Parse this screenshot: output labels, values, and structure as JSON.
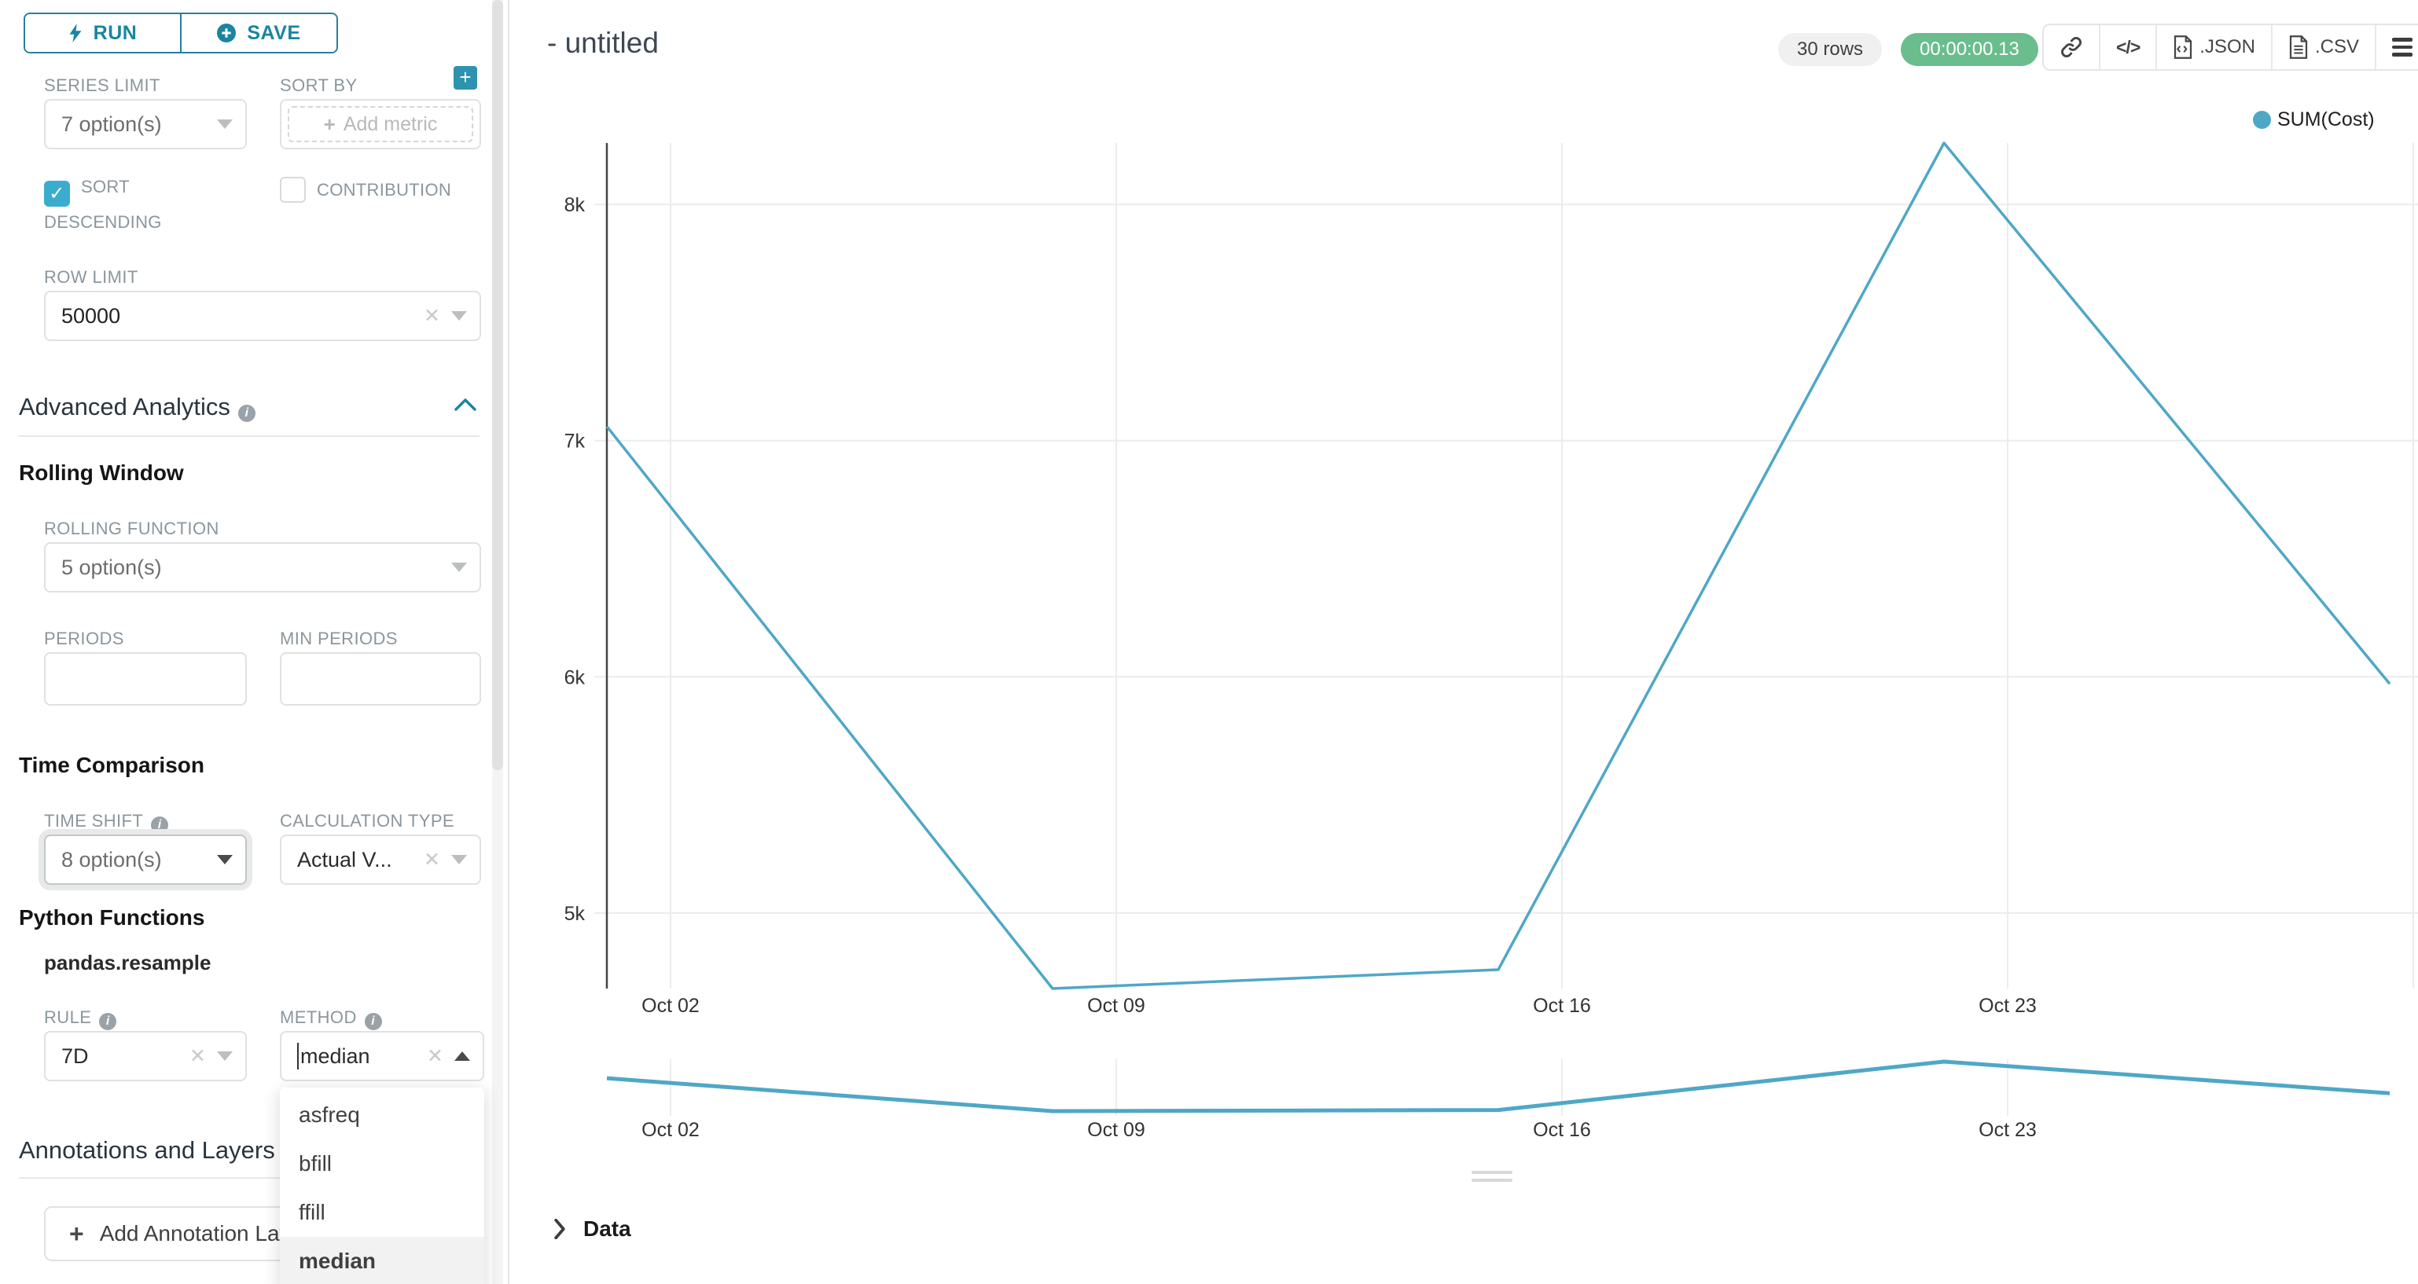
{
  "icons": {
    "check": "✓",
    "clear": "✕",
    "plus": "+",
    "code": "</>",
    "info": "i"
  },
  "sidebar": {
    "run_label": "RUN",
    "save_label": "SAVE",
    "series_limit": {
      "label": "SERIES LIMIT",
      "value": "7 option(s)"
    },
    "sort_by": {
      "label": "SORT BY",
      "placeholder": "Add metric"
    },
    "sort_descending": {
      "label": "SORT DESCENDING",
      "checked": true
    },
    "contribution": {
      "label": "CONTRIBUTION",
      "checked": false
    },
    "row_limit": {
      "label": "ROW LIMIT",
      "value": "50000"
    },
    "advanced_analytics": {
      "title": "Advanced Analytics"
    },
    "rolling_window": {
      "title": "Rolling Window",
      "rolling_function": {
        "label": "ROLLING FUNCTION",
        "value": "5 option(s)"
      },
      "periods": {
        "label": "PERIODS",
        "value": ""
      },
      "min_periods": {
        "label": "MIN PERIODS",
        "value": ""
      }
    },
    "time_comparison": {
      "title": "Time Comparison",
      "time_shift": {
        "label": "TIME SHIFT",
        "value": "8 option(s)"
      },
      "calculation_type": {
        "label": "CALCULATION TYPE",
        "value": "Actual V..."
      }
    },
    "python_functions": {
      "title": "Python Functions",
      "subtitle": "pandas.resample",
      "rule": {
        "label": "RULE",
        "value": "7D"
      },
      "method": {
        "label": "METHOD",
        "value": "median"
      }
    },
    "method_dropdown": {
      "options": [
        "asfreq",
        "bfill",
        "ffill",
        "median"
      ],
      "selected": "median"
    },
    "annotations": {
      "title": "Annotations and Layers",
      "add_button": "Add Annotation Layer"
    }
  },
  "header": {
    "title": "- untitled",
    "rows_badge": "30 rows",
    "timer_badge": "00:00:00.13",
    "export_json": ".JSON",
    "export_csv": ".CSV"
  },
  "data_panel": {
    "title": "Data"
  },
  "chart_data": {
    "type": "line",
    "title": "- untitled",
    "xlabel": "",
    "ylabel": "",
    "grid": true,
    "legend_position": "top-right",
    "legend_entries": [
      "SUM(Cost)"
    ],
    "series": [
      {
        "name": "SUM(Cost)",
        "color": "#4fa7c6",
        "x": [
          "Oct 01",
          "Oct 08",
          "Oct 15",
          "Oct 22",
          "Oct 29"
        ],
        "x_day_offsets": [
          0,
          7,
          14,
          21,
          28
        ],
        "values": [
          7060,
          4680,
          4760,
          8260,
          5970
        ]
      }
    ],
    "x_ticks": [
      {
        "label": "Oct 02",
        "day": 1
      },
      {
        "label": "Oct 09",
        "day": 8
      },
      {
        "label": "Oct 16",
        "day": 15
      },
      {
        "label": "Oct 23",
        "day": 22
      }
    ],
    "y_ticks": [
      {
        "label": "5k",
        "value": 5000
      },
      {
        "label": "6k",
        "value": 6000
      },
      {
        "label": "7k",
        "value": 7000
      },
      {
        "label": "8k",
        "value": 8000
      }
    ],
    "ylim": [
      4680,
      8260
    ],
    "has_preview_strip": true
  }
}
